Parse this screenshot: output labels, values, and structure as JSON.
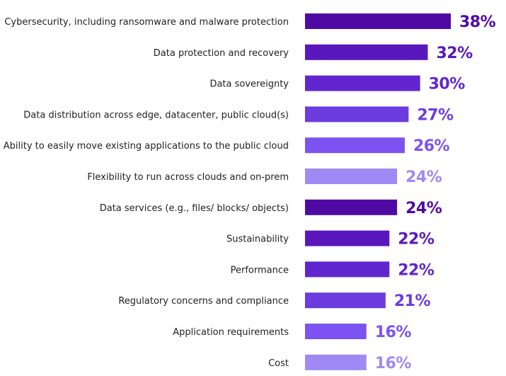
{
  "chart_data": {
    "type": "bar",
    "orientation": "horizontal",
    "categories": [
      "Cybersecurity, including ransomware and malware protection",
      "Data protection and recovery",
      "Data sovereignty",
      "Data distribution across edge, datacenter, public cloud(s)",
      "Ability to easily move existing applications to the public cloud",
      "Flexibility to run across clouds and on-prem",
      "Data services (e.g., files/ blocks/ objects)",
      "Sustainability",
      "Performance",
      "Regulatory concerns and compliance",
      "Application requirements",
      "Cost"
    ],
    "values": [
      38,
      32,
      30,
      27,
      26,
      24,
      24,
      22,
      22,
      21,
      16,
      16
    ],
    "value_labels": [
      "38%",
      "32%",
      "30%",
      "27%",
      "26%",
      "24%",
      "24%",
      "22%",
      "22%",
      "21%",
      "16%",
      "16%"
    ],
    "bar_colors": [
      "#4f0aa4",
      "#5a17bd",
      "#6126cf",
      "#6c3cdf",
      "#7c53f0",
      "#9f89f5",
      "#4f0aa4",
      "#5a17bd",
      "#6126cf",
      "#6c3cdf",
      "#7c53f0",
      "#9f89f5"
    ],
    "label_colors": [
      "#4f0aa4",
      "#5a17bd",
      "#6126cf",
      "#6c3cdf",
      "#7c53f0",
      "#9f89f5",
      "#4f0aa4",
      "#5a17bd",
      "#6126cf",
      "#6c3cdf",
      "#7c53f0",
      "#9f89f5"
    ],
    "xlim": [
      0,
      38
    ],
    "title": "",
    "xlabel": "",
    "ylabel": "",
    "grid": false,
    "legend": "none"
  }
}
